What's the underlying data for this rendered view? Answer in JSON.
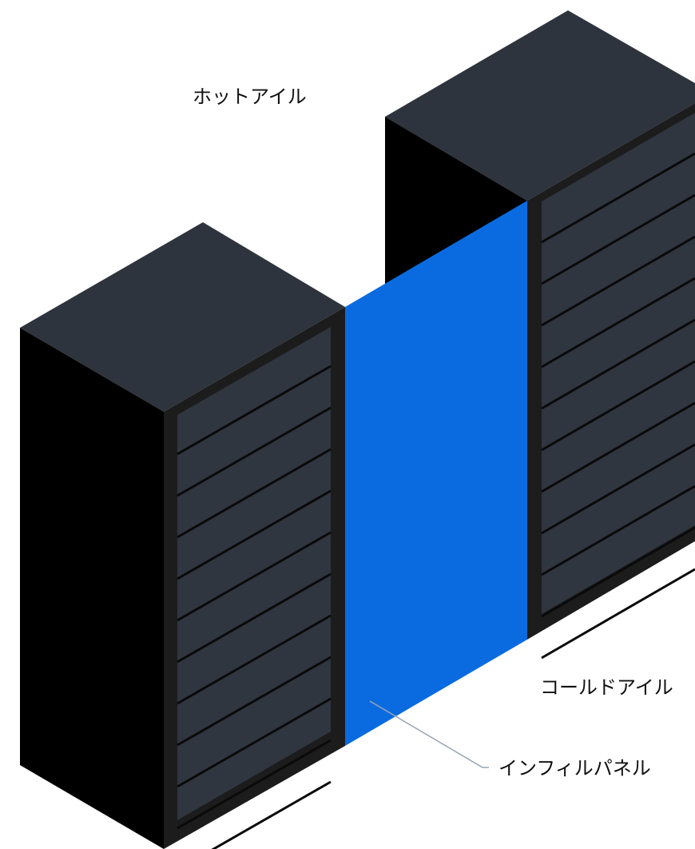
{
  "labels": {
    "hot_aisle": "ホットアイル",
    "cold_aisle": "コールドアイル",
    "infill_panel": "インフィルパネル"
  },
  "colors": {
    "background": "#ffffff",
    "rack_top": "#2e343d",
    "rack_side": "#000000",
    "rack_frame": "#1c1c1c",
    "rack_face": "#2f3640",
    "slot_line": "#0a0a0a",
    "panel": "#0a6be1",
    "leader_line": "#9aa4b5"
  },
  "racks": [
    {
      "name": "left-rack",
      "slot_count": 11
    },
    {
      "name": "right-rack",
      "slot_count": 11
    }
  ]
}
